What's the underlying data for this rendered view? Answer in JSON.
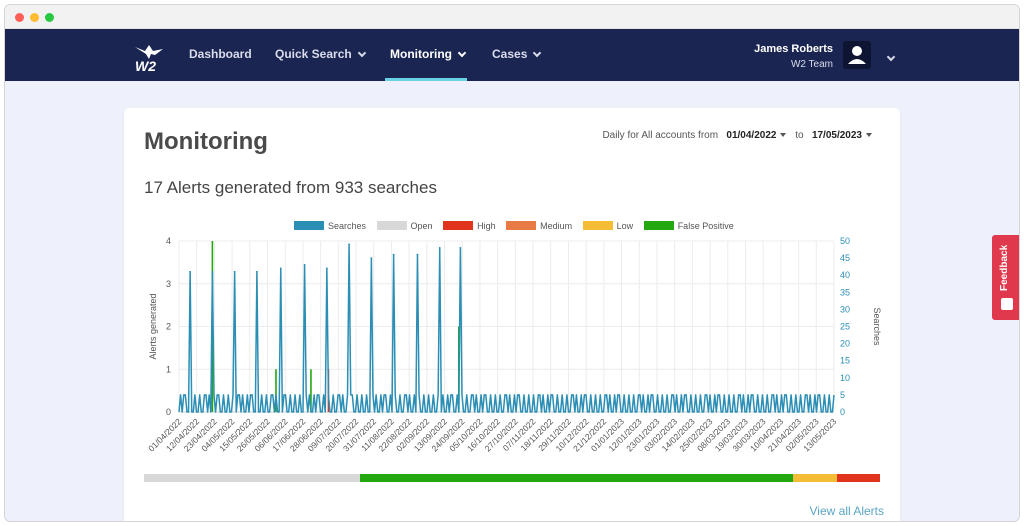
{
  "nav": {
    "items": [
      {
        "label": "Dashboard"
      },
      {
        "label": "Quick Search"
      },
      {
        "label": "Monitoring"
      },
      {
        "label": "Cases"
      }
    ],
    "active": "Monitoring",
    "logo_text": "W2",
    "user_name": "James Roberts",
    "user_team": "W2 Team"
  },
  "page": {
    "title": "Monitoring",
    "date_prefix": "Daily for All accounts from",
    "date_from": "01/04/2022",
    "date_to_word": "to",
    "date_to": "17/05/2023",
    "summary": "17 Alerts generated from 933 searches",
    "view_all": "View all Alerts",
    "feedback": "Feedback"
  },
  "colors": {
    "navy": "#1a2552",
    "searches": "#2b8eb5",
    "open": "#d8d8d8",
    "high": "#e0341c",
    "medium": "#e87a45",
    "low": "#f4bd35",
    "false_positive": "#24a80f",
    "feedback": "#e0394d"
  },
  "status_bar": [
    {
      "name": "Open",
      "fraction": 0.294
    },
    {
      "name": "False Positive",
      "fraction": 0.588
    },
    {
      "name": "Low",
      "fraction": 0.059
    },
    {
      "name": "High",
      "fraction": 0.059
    }
  ],
  "chart_data": {
    "type": "line",
    "legend": [
      "Searches",
      "Open",
      "High",
      "Medium",
      "Low",
      "False Positive"
    ],
    "ylabel_left": "Alerts generated",
    "ylabel_right": "Searches",
    "y_left_ticks": [
      0,
      1,
      2,
      3,
      4
    ],
    "y_right_ticks": [
      0,
      5,
      10,
      15,
      20,
      25,
      30,
      35,
      40,
      45,
      50
    ],
    "ylim_left": [
      0,
      4
    ],
    "ylim_right": [
      0,
      50
    ],
    "grid": true,
    "x_tick_labels": [
      "01/04/2022",
      "12/04/2022",
      "23/04/2022",
      "04/05/2022",
      "15/05/2022",
      "26/05/2022",
      "06/06/2022",
      "17/06/2022",
      "28/06/2022",
      "09/07/2022",
      "20/07/2022",
      "31/07/2022",
      "11/08/2022",
      "22/08/2022",
      "02/09/2022",
      "13/09/2022",
      "24/09/2022",
      "05/10/2022",
      "16/10/2022",
      "27/10/2022",
      "07/11/2022",
      "18/11/2022",
      "29/11/2022",
      "10/12/2022",
      "21/12/2022",
      "01/01/2023",
      "12/01/2023",
      "23/01/2023",
      "03/02/2023",
      "14/02/2023",
      "25/02/2023",
      "08/03/2023",
      "19/03/2023",
      "30/03/2023",
      "10/04/2023",
      "21/04/2023",
      "02/05/2023",
      "13/05/2023"
    ],
    "searches_peaks": [
      {
        "day": 7,
        "value": 41
      },
      {
        "day": 21,
        "value": 41
      },
      {
        "day": 35,
        "value": 41
      },
      {
        "day": 49,
        "value": 41
      },
      {
        "day": 64,
        "value": 42
      },
      {
        "day": 79,
        "value": 43
      },
      {
        "day": 93,
        "value": 42
      },
      {
        "day": 107,
        "value": 49
      },
      {
        "day": 121,
        "value": 45
      },
      {
        "day": 135,
        "value": 46
      },
      {
        "day": 150,
        "value": 46
      },
      {
        "day": 164,
        "value": 48
      },
      {
        "day": 177,
        "value": 48
      }
    ],
    "searches_baseline": 5,
    "alert_bars": [
      {
        "day": 21,
        "value": 4,
        "type": "False Positive"
      },
      {
        "day": 61,
        "value": 1,
        "type": "False Positive"
      },
      {
        "day": 83,
        "value": 1,
        "type": "False Positive"
      },
      {
        "day": 94,
        "value": 1,
        "type": "High"
      },
      {
        "day": 176,
        "value": 2,
        "type": "False Positive"
      }
    ],
    "total_days": 412
  }
}
